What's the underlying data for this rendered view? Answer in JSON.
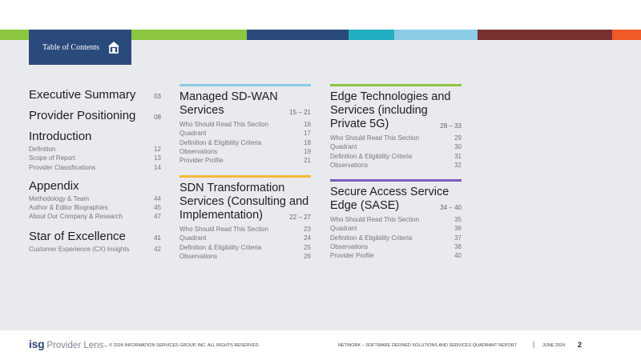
{
  "colors": {
    "bar_segments": [
      "#8cc63f",
      "#2a4a7c",
      "#22aec1",
      "#8bcbe5",
      "#7a2f31",
      "#f05a28"
    ],
    "rule_managed": "#8bcbe5",
    "rule_sdn": "#f4b936",
    "rule_edge": "#8cc63f",
    "rule_sase": "#7b5dba",
    "tab": "#2a4a7c"
  },
  "toc_tab": {
    "label": "Table of Contents",
    "icon": "home-icon"
  },
  "col1": {
    "exec": {
      "title": "Executive Summary",
      "page": "03"
    },
    "provider": {
      "title": "Provider Positioning",
      "page": "08"
    },
    "intro": {
      "title": "Introduction",
      "items": [
        {
          "label": "Definition",
          "page": "12"
        },
        {
          "label": "Scope of Report",
          "page": "13"
        },
        {
          "label": "Provider Classifications",
          "page": "14"
        }
      ]
    },
    "appendix": {
      "title": "Appendix",
      "items": [
        {
          "label": "Methodology & Team",
          "page": "44"
        },
        {
          "label": "Author & Editor Biographies",
          "page": "45"
        },
        {
          "label": "About Our Company & Research",
          "page": "47"
        }
      ]
    },
    "star": {
      "title": "Star of Excellence",
      "page": "41",
      "items": [
        {
          "label": "Customer Experience (CX) Insights",
          "page": "42"
        }
      ]
    }
  },
  "managed": {
    "title_l1": "Managed SD-WAN",
    "title_l2": "Services",
    "range": "15 – 21",
    "items": [
      {
        "label": "Who Should Read This Section",
        "page": "16"
      },
      {
        "label": "Quadrant",
        "page": "17"
      },
      {
        "label": "Definition & Eligibility Criteria",
        "page": "18"
      },
      {
        "label": "Observations",
        "page": "19"
      },
      {
        "label": "Provider Profile",
        "page": "21"
      }
    ]
  },
  "sdn": {
    "title_l1": "SDN Transformation",
    "title_l2": "Services (Consulting and",
    "title_l3": "Implementation)",
    "range": "22 – 27",
    "items": [
      {
        "label": "Who Should Read This Section",
        "page": "23"
      },
      {
        "label": "Quadrant",
        "page": "24"
      },
      {
        "label": "Definition & Eligibility Criteria",
        "page": "25"
      },
      {
        "label": "Observations",
        "page": "26"
      }
    ]
  },
  "edge": {
    "title_l1": "Edge Technologies and",
    "title_l2": "Services (including",
    "title_l3": "Private 5G)",
    "range": "28 – 33",
    "items": [
      {
        "label": "Who Should Read This Section",
        "page": "29"
      },
      {
        "label": "Quadrant",
        "page": "30"
      },
      {
        "label": "Definition & Eligibility Criteria",
        "page": "31"
      },
      {
        "label": "Observations",
        "page": "32"
      }
    ]
  },
  "sase": {
    "title_l1": "Secure Access Service",
    "title_l2": "Edge (SASE)",
    "range": "34 – 40",
    "items": [
      {
        "label": "Who Should Read This Section",
        "page": "35"
      },
      {
        "label": "Quadrant",
        "page": "36"
      },
      {
        "label": "Definition & Eligibility Criteria",
        "page": "37"
      },
      {
        "label": "Observations",
        "page": "38"
      },
      {
        "label": "Provider Profile",
        "page": "40"
      }
    ]
  },
  "footer": {
    "logo_isg": "isg",
    "logo_pl": "Provider Lens",
    "logo_tm": "™",
    "copyright": "© 2024 INFORMATION SERVICES GROUP, INC. ALL RIGHTS RESERVED.",
    "report": "NETWORK – SOFTWARE DEFINED SOLUTIONS AND SERVICES QUADRANT REPORT",
    "sep": "|",
    "date": "JUNE 2024",
    "page": "2"
  }
}
